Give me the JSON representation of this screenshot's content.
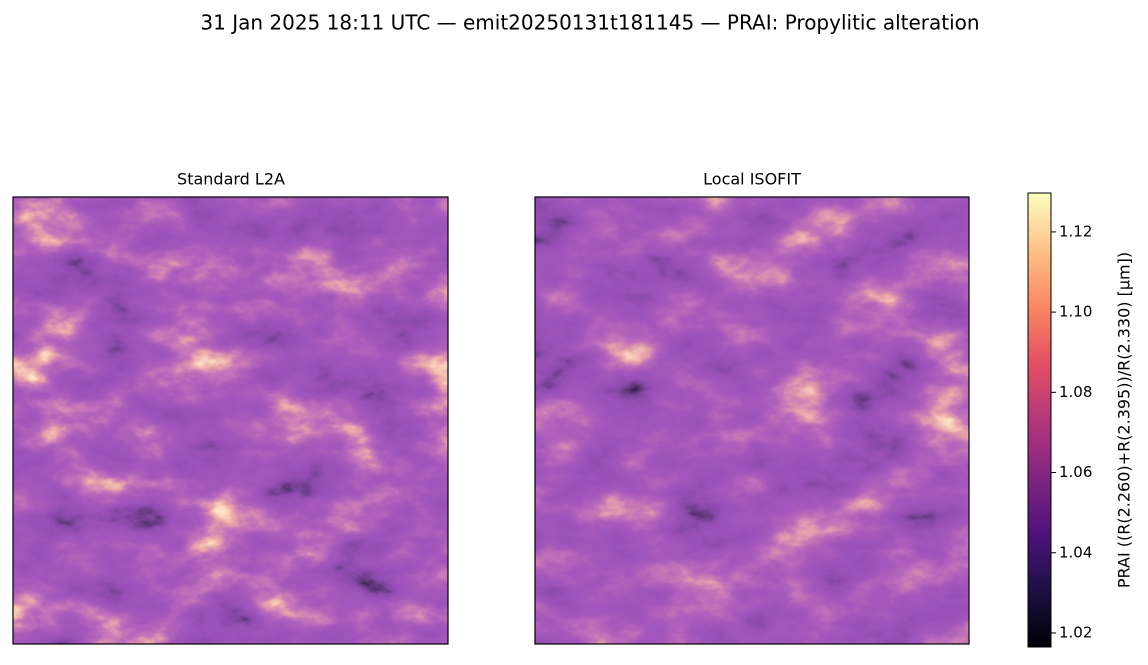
{
  "chart_data": {
    "type": "image",
    "title": "31 Jan 2025 18:11 UTC — emit20250131t181145 — PRAI: Propylitic alteration",
    "panels": [
      {
        "title": "Standard L2A"
      },
      {
        "title": "Local ISOFIT"
      }
    ],
    "colormap": "magma",
    "colorbar": {
      "label": "PRAI  ((R(2.260)+R(2.395))/R(2.330)  [µm])",
      "lim": [
        1.0165,
        1.1297
      ],
      "ticks": [
        1.02,
        1.04,
        1.06,
        1.08,
        1.1,
        {
          "value": 1.1,
          "label": "1.10"
        },
        1.12
      ]
    }
  }
}
